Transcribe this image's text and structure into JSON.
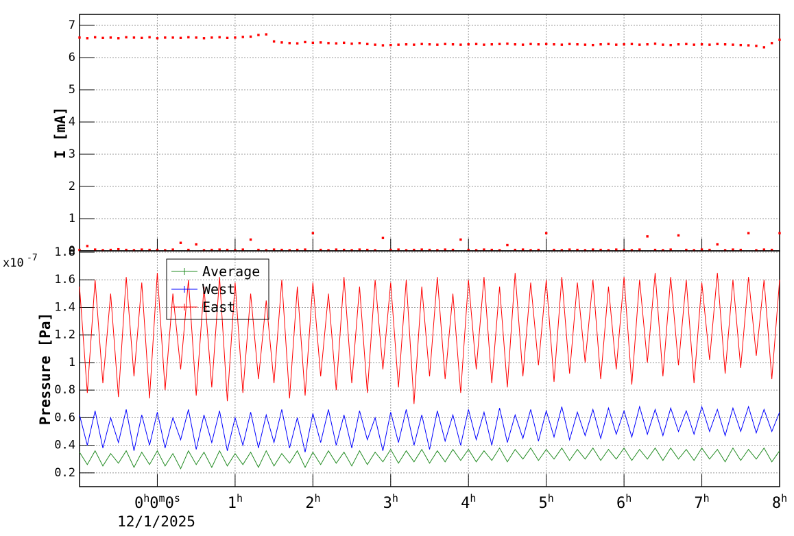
{
  "chart_data": [
    {
      "type": "scatter",
      "ylabel": "I [mA]",
      "xlim": [
        -1,
        8
      ],
      "xticks": [
        0,
        1,
        2,
        3,
        4,
        5,
        6,
        7,
        8
      ],
      "ylim": [
        0,
        7.34
      ],
      "yticks": [
        0,
        1,
        2,
        3,
        4,
        5,
        6,
        7
      ],
      "grid": true,
      "x": [
        -1,
        -0.9,
        -0.8,
        -0.7,
        -0.6,
        -0.5,
        -0.4,
        -0.3,
        -0.2,
        -0.1,
        0,
        0.1,
        0.2,
        0.3,
        0.4,
        0.5,
        0.6,
        0.7,
        0.8,
        0.9,
        1,
        1.1,
        1.2,
        1.3,
        1.4,
        1.5,
        1.6,
        1.7,
        1.8,
        1.9,
        2,
        2.1,
        2.2,
        2.3,
        2.4,
        2.5,
        2.6,
        2.7,
        2.8,
        2.9,
        3,
        3.1,
        3.2,
        3.3,
        3.4,
        3.5,
        3.6,
        3.7,
        3.8,
        3.9,
        4,
        4.1,
        4.2,
        4.3,
        4.4,
        4.5,
        4.6,
        4.7,
        4.8,
        4.9,
        5,
        5.1,
        5.2,
        5.3,
        5.4,
        5.5,
        5.6,
        5.7,
        5.8,
        5.9,
        6,
        6.1,
        6.2,
        6.3,
        6.4,
        6.5,
        6.6,
        6.7,
        6.8,
        6.9,
        7,
        7.1,
        7.2,
        7.3,
        7.4,
        7.5,
        7.6,
        7.7,
        7.8,
        7.9,
        8
      ],
      "series": [
        {
          "color": "#ff0000",
          "values": [
            6.62,
            6.6,
            6.63,
            6.61,
            6.62,
            6.6,
            6.63,
            6.62,
            6.61,
            6.63,
            6.6,
            6.62,
            6.62,
            6.61,
            6.63,
            6.62,
            6.6,
            6.62,
            6.63,
            6.61,
            6.62,
            6.64,
            6.65,
            6.7,
            6.72,
            6.5,
            6.47,
            6.45,
            6.44,
            6.48,
            6.46,
            6.47,
            6.45,
            6.44,
            6.46,
            6.43,
            6.45,
            6.42,
            6.4,
            6.38,
            6.39,
            6.4,
            6.41,
            6.4,
            6.42,
            6.41,
            6.4,
            6.42,
            6.41,
            6.4,
            6.41,
            6.42,
            6.4,
            6.41,
            6.42,
            6.43,
            6.41,
            6.4,
            6.42,
            6.41,
            6.42,
            6.41,
            6.4,
            6.42,
            6.41,
            6.4,
            6.39,
            6.41,
            6.42,
            6.4,
            6.41,
            6.42,
            6.4,
            6.41,
            6.43,
            6.4,
            6.39,
            6.41,
            6.42,
            6.4,
            6.41,
            6.4,
            6.42,
            6.41,
            6.4,
            6.39,
            6.38,
            6.36,
            6.32,
            6.45,
            6.55
          ]
        },
        {
          "color": "#ff0000",
          "values": [
            0.03,
            0.15,
            0.04,
            0.02,
            0.03,
            0.05,
            0.03,
            0.02,
            0.04,
            0.03,
            0.03,
            0.02,
            0.04,
            0.25,
            0.03,
            0.2,
            0.02,
            0.03,
            0.04,
            0.03,
            0.02,
            0.04,
            0.35,
            0.03,
            0.02,
            0.04,
            0.03,
            0.02,
            0.03,
            0.04,
            0.55,
            0.03,
            0.02,
            0.04,
            0.03,
            0.02,
            0.04,
            0.03,
            0.02,
            0.4,
            0.03,
            0.04,
            0.02,
            0.03,
            0.04,
            0.03,
            0.02,
            0.04,
            0.03,
            0.35,
            0.03,
            0.02,
            0.04,
            0.03,
            0.02,
            0.18,
            0.03,
            0.04,
            0.02,
            0.03,
            0.55,
            0.03,
            0.02,
            0.04,
            0.03,
            0.02,
            0.04,
            0.03,
            0.02,
            0.04,
            0.03,
            0.02,
            0.04,
            0.45,
            0.03,
            0.02,
            0.04,
            0.48,
            0.03,
            0.02,
            0.04,
            0.03,
            0.2,
            0.02,
            0.04,
            0.03,
            0.55,
            0.02,
            0.04,
            0.03,
            0.55
          ]
        }
      ]
    },
    {
      "type": "line",
      "ylabel": "Pressure [Pa]",
      "y_multiplier": {
        "base": "x10",
        "exponent": "-7"
      },
      "xlim": [
        -1,
        8
      ],
      "xticks": [
        {
          "value": 0,
          "label": "0h0m0s"
        },
        {
          "value": 1,
          "label": "1h"
        },
        {
          "value": 2,
          "label": "2h"
        },
        {
          "value": 3,
          "label": "3h"
        },
        {
          "value": 4,
          "label": "4h"
        },
        {
          "value": 5,
          "label": "5h"
        },
        {
          "value": 6,
          "label": "6h"
        },
        {
          "value": 7,
          "label": "7h"
        },
        {
          "value": 8,
          "label": "8h"
        }
      ],
      "time_offset_label": "12/1/2025",
      "ylim": [
        0.1,
        1.81
      ],
      "yticks": [
        0.2,
        0.4,
        0.6,
        0.8,
        1,
        1.2,
        1.4,
        1.6,
        1.8
      ],
      "grid": true,
      "legend": "top-left",
      "x": [
        -1,
        -0.9,
        -0.8,
        -0.7,
        -0.6,
        -0.5,
        -0.4,
        -0.3,
        -0.2,
        -0.1,
        0,
        0.1,
        0.2,
        0.3,
        0.4,
        0.5,
        0.6,
        0.7,
        0.8,
        0.9,
        1,
        1.1,
        1.2,
        1.3,
        1.4,
        1.5,
        1.6,
        1.7,
        1.8,
        1.9,
        2,
        2.1,
        2.2,
        2.3,
        2.4,
        2.5,
        2.6,
        2.7,
        2.8,
        2.9,
        3,
        3.1,
        3.2,
        3.3,
        3.4,
        3.5,
        3.6,
        3.7,
        3.8,
        3.9,
        4,
        4.1,
        4.2,
        4.3,
        4.4,
        4.5,
        4.6,
        4.7,
        4.8,
        4.9,
        5,
        5.1,
        5.2,
        5.3,
        5.4,
        5.5,
        5.6,
        5.7,
        5.8,
        5.9,
        6,
        6.1,
        6.2,
        6.3,
        6.4,
        6.5,
        6.6,
        6.7,
        6.8,
        6.9,
        7,
        7.1,
        7.2,
        7.3,
        7.4,
        7.5,
        7.6,
        7.7,
        7.8,
        7.9,
        8
      ],
      "series": [
        {
          "name": "Average",
          "color": "#228b22",
          "values": [
            0.35,
            0.26,
            0.36,
            0.25,
            0.34,
            0.27,
            0.36,
            0.24,
            0.35,
            0.26,
            0.36,
            0.25,
            0.34,
            0.23,
            0.36,
            0.26,
            0.35,
            0.24,
            0.36,
            0.25,
            0.34,
            0.26,
            0.35,
            0.24,
            0.36,
            0.25,
            0.34,
            0.27,
            0.36,
            0.24,
            0.35,
            0.26,
            0.36,
            0.27,
            0.35,
            0.25,
            0.36,
            0.26,
            0.35,
            0.28,
            0.37,
            0.27,
            0.36,
            0.28,
            0.37,
            0.27,
            0.36,
            0.28,
            0.37,
            0.29,
            0.37,
            0.28,
            0.36,
            0.29,
            0.38,
            0.28,
            0.37,
            0.3,
            0.38,
            0.29,
            0.37,
            0.3,
            0.38,
            0.29,
            0.37,
            0.3,
            0.38,
            0.29,
            0.37,
            0.3,
            0.38,
            0.29,
            0.37,
            0.3,
            0.38,
            0.29,
            0.38,
            0.3,
            0.37,
            0.29,
            0.38,
            0.3,
            0.37,
            0.28,
            0.38,
            0.29,
            0.37,
            0.3,
            0.38,
            0.28,
            0.36
          ]
        },
        {
          "name": "West",
          "color": "#0000ff",
          "values": [
            0.62,
            0.4,
            0.65,
            0.38,
            0.6,
            0.42,
            0.66,
            0.36,
            0.62,
            0.4,
            0.64,
            0.38,
            0.6,
            0.44,
            0.66,
            0.37,
            0.62,
            0.42,
            0.65,
            0.36,
            0.6,
            0.4,
            0.64,
            0.38,
            0.62,
            0.42,
            0.66,
            0.38,
            0.6,
            0.35,
            0.63,
            0.42,
            0.66,
            0.4,
            0.62,
            0.38,
            0.65,
            0.44,
            0.6,
            0.36,
            0.64,
            0.42,
            0.66,
            0.4,
            0.62,
            0.37,
            0.65,
            0.43,
            0.62,
            0.4,
            0.66,
            0.44,
            0.64,
            0.4,
            0.67,
            0.42,
            0.62,
            0.45,
            0.66,
            0.43,
            0.65,
            0.46,
            0.68,
            0.44,
            0.64,
            0.47,
            0.66,
            0.45,
            0.67,
            0.48,
            0.65,
            0.46,
            0.68,
            0.48,
            0.66,
            0.47,
            0.67,
            0.5,
            0.65,
            0.48,
            0.68,
            0.5,
            0.66,
            0.47,
            0.67,
            0.5,
            0.68,
            0.49,
            0.66,
            0.5,
            0.64
          ]
        },
        {
          "name": "East",
          "color": "#ff0000",
          "values": [
            1.55,
            0.78,
            1.6,
            0.85,
            1.5,
            0.75,
            1.62,
            0.9,
            1.58,
            0.74,
            1.65,
            0.8,
            1.5,
            0.95,
            1.6,
            0.76,
            1.55,
            0.82,
            1.62,
            0.72,
            1.58,
            0.78,
            1.5,
            0.88,
            1.45,
            0.85,
            1.6,
            0.74,
            1.55,
            0.76,
            1.58,
            0.9,
            1.5,
            0.8,
            1.62,
            0.85,
            1.55,
            0.78,
            1.6,
            0.95,
            1.58,
            0.82,
            1.6,
            0.7,
            1.55,
            0.9,
            1.62,
            0.88,
            1.5,
            0.78,
            1.6,
            0.95,
            1.62,
            0.85,
            1.55,
            0.82,
            1.65,
            0.9,
            1.58,
            0.98,
            1.6,
            0.86,
            1.62,
            0.92,
            1.58,
            1.0,
            1.6,
            0.88,
            1.55,
            0.95,
            1.62,
            0.84,
            1.6,
            1.0,
            1.65,
            0.9,
            1.62,
            0.98,
            1.6,
            0.85,
            1.58,
            1.02,
            1.65,
            0.92,
            1.6,
            0.96,
            1.62,
            1.05,
            1.6,
            0.88,
            1.6
          ]
        }
      ]
    }
  ]
}
